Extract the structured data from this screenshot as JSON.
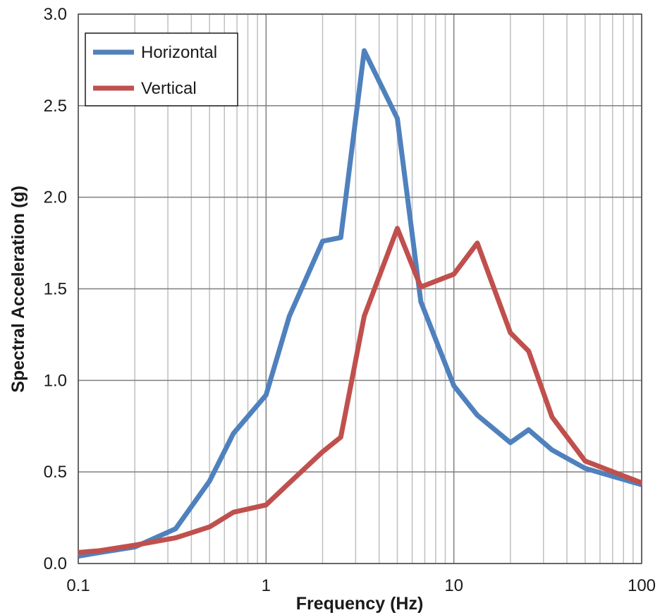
{
  "chart_data": {
    "type": "line",
    "xlabel": "Frequency (Hz)",
    "ylabel": "Spectral Acceleration (g)",
    "x_scale": "log",
    "xlim": [
      0.1,
      100
    ],
    "ylim": [
      0,
      3.0
    ],
    "x_ticks": [
      0.1,
      1,
      10,
      100
    ],
    "x_tick_labels": [
      "0.1",
      "1",
      "10",
      "100"
    ],
    "y_ticks": [
      0,
      0.5,
      1.0,
      1.5,
      2.0,
      2.5,
      3.0
    ],
    "y_tick_labels": [
      "0.0",
      "0.5",
      "1.0",
      "1.5",
      "2.0",
      "2.5",
      "3.0"
    ],
    "grid": true,
    "legend_position": "top-left",
    "series": [
      {
        "name": "Horizontal",
        "color": "#4F81BD",
        "x": [
          0.1,
          0.13,
          0.2,
          0.33,
          0.5,
          0.67,
          1.0,
          1.33,
          2.0,
          2.5,
          3.33,
          5.0,
          6.67,
          10,
          13.33,
          20,
          25,
          33.33,
          50,
          100
        ],
        "y": [
          0.04,
          0.06,
          0.09,
          0.19,
          0.45,
          0.71,
          0.92,
          1.35,
          1.76,
          1.78,
          2.8,
          2.43,
          1.43,
          0.97,
          0.81,
          0.66,
          0.73,
          0.62,
          0.52,
          0.43
        ]
      },
      {
        "name": "Vertical",
        "color": "#C0504D",
        "x": [
          0.1,
          0.13,
          0.2,
          0.33,
          0.5,
          0.67,
          1.0,
          1.33,
          2.0,
          2.5,
          3.33,
          5.0,
          6.67,
          10,
          13.33,
          20,
          25,
          33.33,
          50,
          100
        ],
        "y": [
          0.06,
          0.07,
          0.1,
          0.14,
          0.2,
          0.28,
          0.32,
          0.44,
          0.61,
          0.69,
          1.35,
          1.83,
          1.51,
          1.58,
          1.75,
          1.26,
          1.16,
          0.8,
          0.56,
          0.44
        ]
      }
    ]
  }
}
